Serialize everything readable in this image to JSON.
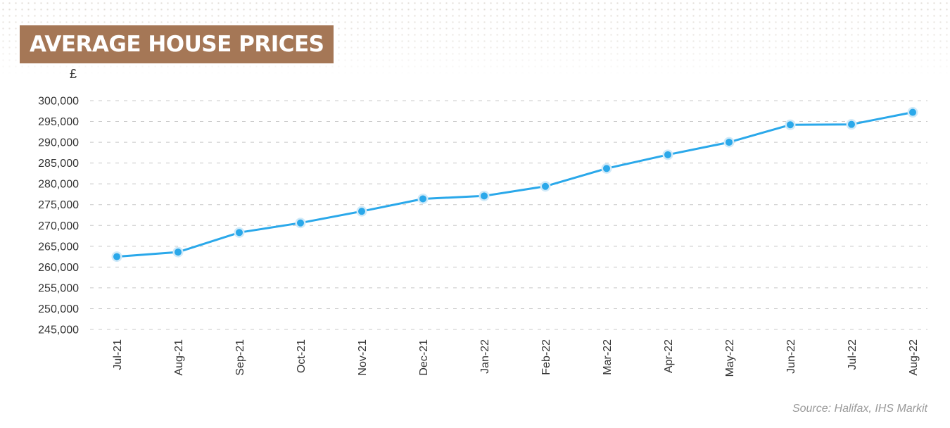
{
  "title": "AVERAGE HOUSE PRICES",
  "source": "Source: Halifax, IHS Markit",
  "colors": {
    "title_background": "#a57756",
    "line": "#2aa8ea",
    "grid": "#c8c8c8"
  },
  "chart_data": {
    "type": "line",
    "title": "AVERAGE HOUSE PRICES",
    "ylabel": "£",
    "xlabel": "",
    "categories": [
      "Jul-21",
      "Aug-21",
      "Sep-21",
      "Oct-21",
      "Nov-21",
      "Dec-21",
      "Jan-22",
      "Feb-22",
      "Mar-22",
      "Apr-22",
      "May-22",
      "Jun-22",
      "Jul-22",
      "Aug-22"
    ],
    "series": [
      {
        "values": [
          262500,
          263600,
          268300,
          270600,
          273400,
          276400,
          277100,
          279400,
          283700,
          287000,
          290000,
          294200,
          294300,
          297200
        ]
      }
    ],
    "ylim": [
      245000,
      300000
    ],
    "yticks": [
      245000,
      250000,
      255000,
      260000,
      265000,
      270000,
      275000,
      280000,
      285000,
      290000,
      295000,
      300000
    ],
    "ytick_labels": [
      "245,000",
      "250,000",
      "255,000",
      "260,000",
      "265,000",
      "270,000",
      "275,000",
      "280,000",
      "285,000",
      "290,000",
      "295,000",
      "300,000"
    ],
    "grid": "horizontal dashed",
    "legend": "none"
  }
}
